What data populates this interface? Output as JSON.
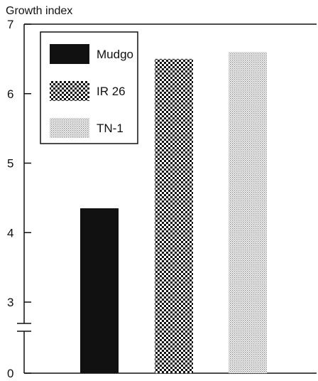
{
  "chart_data": {
    "type": "bar",
    "ylabel": "Growth index",
    "xlabel": "",
    "title": "",
    "categories": [
      "Mudgo",
      "IR 26",
      "TN-1"
    ],
    "values": [
      4.35,
      6.5,
      6.6
    ],
    "ylim": [
      0,
      7
    ],
    "axis_break": [
      0,
      3
    ],
    "yticks": [
      0,
      3,
      4,
      5,
      6,
      7
    ],
    "ytick_labels": [
      "0",
      "3",
      "4",
      "5",
      "6",
      "7"
    ],
    "legend": {
      "placement": "top-left",
      "entries": [
        {
          "label": "Mudgo",
          "fill": "solid-black"
        },
        {
          "label": "IR 26",
          "fill": "dense-checker"
        },
        {
          "label": "TN-1",
          "fill": "light-dots"
        }
      ]
    },
    "grid": false
  }
}
